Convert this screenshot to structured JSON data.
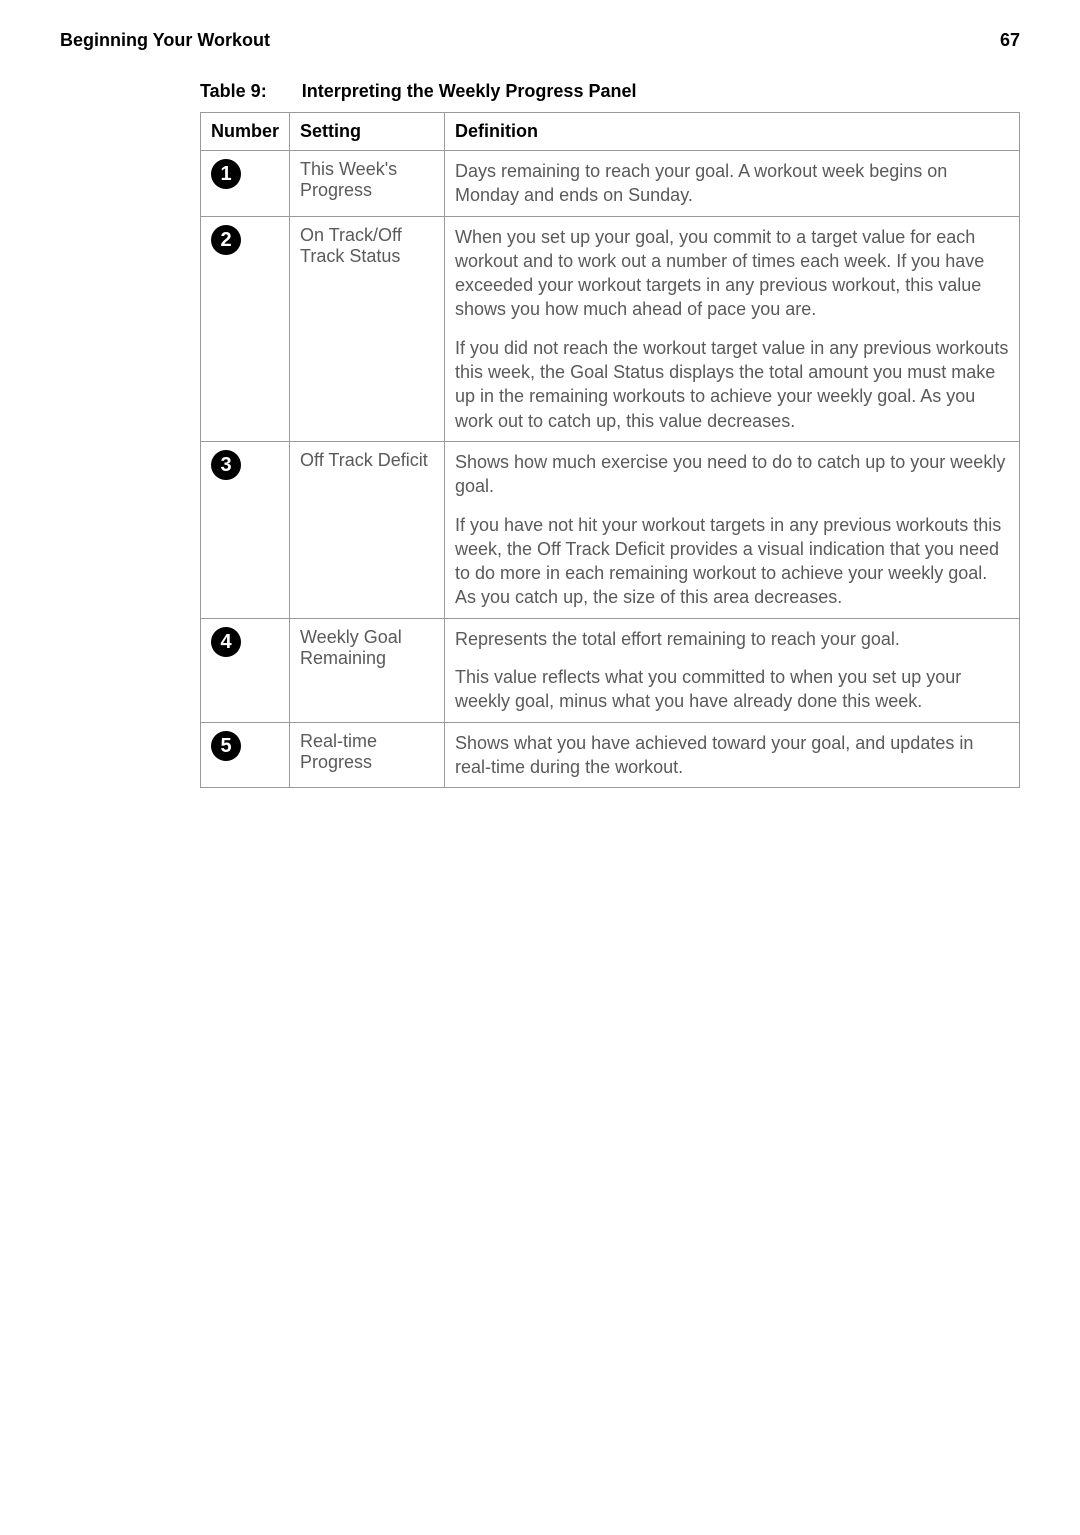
{
  "header": {
    "section": "Beginning Your Workout",
    "pagenum": "67"
  },
  "caption": {
    "prefix": "Table 9:",
    "title": "Interpreting the Weekly Progress Panel"
  },
  "columns": {
    "c1": "Number",
    "c2": "Setting",
    "c3": "Definition"
  },
  "rows": [
    {
      "num": "1",
      "setting": "This Week's Progress",
      "defs": [
        "Days remaining to reach your goal. A workout week begins on Monday and ends on Sunday."
      ]
    },
    {
      "num": "2",
      "setting": "On Track/Off Track Status",
      "defs": [
        "When you set up your goal, you commit to a target value for each workout and to work out a number of times each week. If you have exceeded your workout targets in any previous workout, this value shows you how much ahead of pace you are.",
        "If you did not reach the workout target value in any previous workouts this week, the Goal Status displays the total amount you must make up in the remaining workouts to achieve your weekly goal. As you work out to catch up, this value decreases."
      ]
    },
    {
      "num": "3",
      "setting": "Off Track Deficit",
      "defs": [
        "Shows how much exercise you need to do to catch up to your weekly goal.",
        "If you have not hit your workout targets in any previous workouts this week, the Off Track Deficit provides a visual indication that you need to do more in each remaining workout to achieve your weekly goal. As you catch up, the size of this area decreases."
      ]
    },
    {
      "num": "4",
      "setting": "Weekly Goal Remaining",
      "defs": [
        "Represents the total effort remaining to reach your goal.",
        "This value reflects what you committed to when you set up your weekly goal, minus what you have already done this week."
      ]
    },
    {
      "num": "5",
      "setting": "Real-time Progress",
      "defs": [
        "Shows what you have achieved toward your goal, and updates in real-time during the workout."
      ]
    }
  ]
}
